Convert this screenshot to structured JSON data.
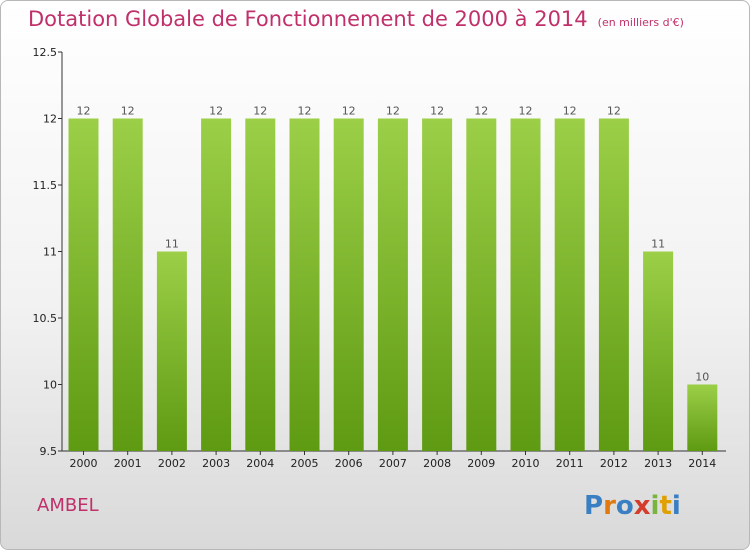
{
  "header": {
    "title": "Dotation Globale de Fonctionnement de 2000 à 2014",
    "unit": "(en milliers d'€)"
  },
  "footer": {
    "commune": "AMBEL",
    "logo_letters": [
      "P",
      "r",
      "o",
      "x",
      "i",
      "t",
      "i"
    ]
  },
  "colors": {
    "title": "#c0306a",
    "bar_top": "#9ccf48",
    "bar_bottom": "#5e9a12"
  },
  "chart_data": {
    "type": "bar",
    "title": "Dotation Globale de Fonctionnement de 2000 à 2014",
    "subtitle": "(en milliers d'€)",
    "categories": [
      "2000",
      "2001",
      "2002",
      "2003",
      "2004",
      "2005",
      "2006",
      "2007",
      "2008",
      "2009",
      "2010",
      "2011",
      "2012",
      "2013",
      "2014"
    ],
    "values": [
      12,
      12,
      11,
      12,
      12,
      12,
      12,
      12,
      12,
      12,
      12,
      12,
      12,
      11,
      10
    ],
    "data_labels": [
      "12",
      "12",
      "11",
      "12",
      "12",
      "12",
      "12",
      "12",
      "12",
      "12",
      "12",
      "12",
      "12",
      "11",
      "10"
    ],
    "ylim": [
      9.5,
      12.5
    ],
    "yticks": [
      9.5,
      10,
      10.5,
      11,
      11.5,
      12,
      12.5
    ],
    "ytick_labels": [
      "9.5",
      "10",
      "10.5",
      "11",
      "11.5",
      "12",
      "12.5"
    ],
    "grid": false,
    "legend": "none"
  }
}
